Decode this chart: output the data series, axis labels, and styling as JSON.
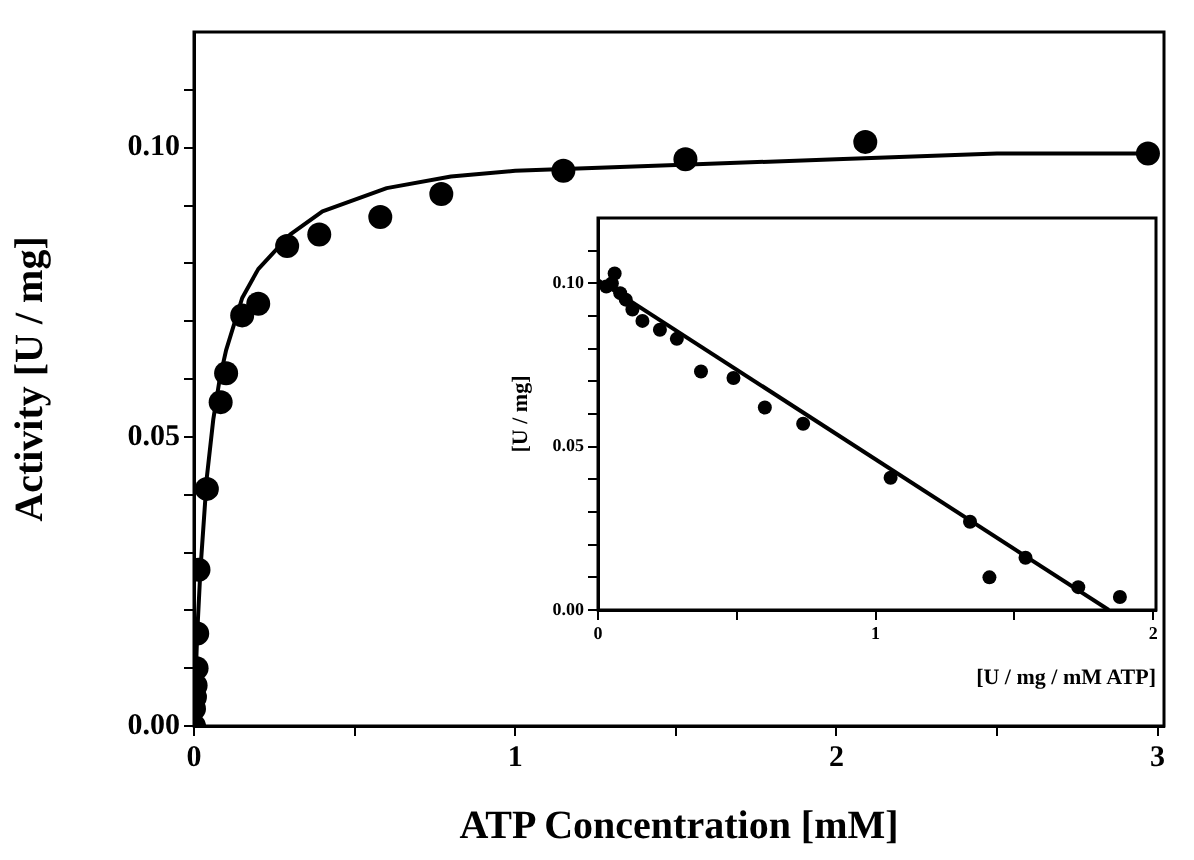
{
  "chart_data": [
    {
      "type": "scatter",
      "xlabel": "ATP Concentration [mM]",
      "ylabel": "Activity [U / mg]",
      "xlim": [
        0,
        3.02
      ],
      "ylim": [
        0,
        0.12
      ],
      "marker": "circle",
      "xticks": [
        0,
        {
          "value": 0.5,
          "label": null
        },
        1,
        {
          "value": 1.5,
          "label": null
        },
        2,
        {
          "value": 2.5,
          "label": null
        },
        3
      ],
      "yticks": [
        {
          "value": 0,
          "label": "0.00"
        },
        {
          "value": 0.01,
          "label": null
        },
        {
          "value": 0.02,
          "label": null
        },
        {
          "value": 0.03,
          "label": null
        },
        {
          "value": 0.04,
          "label": null
        },
        {
          "value": 0.05,
          "label": "0.05"
        },
        {
          "value": 0.06,
          "label": null
        },
        {
          "value": 0.07,
          "label": null
        },
        {
          "value": 0.08,
          "label": null
        },
        {
          "value": 0.09,
          "label": null
        },
        {
          "value": 0.1,
          "label": "0.10"
        },
        {
          "value": 0.11,
          "label": null
        }
      ],
      "series": [
        {
          "color": "#000000",
          "x": [
            0,
            0,
            0.003,
            0.005,
            0.008,
            0.01,
            0.014,
            0.04,
            0.083,
            0.1,
            0.15,
            0.2,
            0.29,
            0.39,
            0.58,
            0.77,
            1.15,
            1.53,
            2.09,
            2.97
          ],
          "values": [
            0,
            0.003,
            0.005,
            0.007,
            0.01,
            0.016,
            0.027,
            0.041,
            0.056,
            0.061,
            0.071,
            0.073,
            0.083,
            0.085,
            0.088,
            0.092,
            0.096,
            0.098,
            0.101,
            0.099
          ]
        },
        {
          "type": "line",
          "marker": "none",
          "color": "#000000",
          "x": [
            0,
            0.01,
            0.02,
            0.04,
            0.06,
            0.08,
            0.1,
            0.15,
            0.2,
            0.3,
            0.4,
            0.6,
            0.8,
            1,
            1.5,
            2,
            2.5,
            3
          ],
          "values": [
            0,
            0.016,
            0.027,
            0.043,
            0.053,
            0.06,
            0.065,
            0.074,
            0.079,
            0.085,
            0.089,
            0.093,
            0.095,
            0.096,
            0.097,
            0.098,
            0.099,
            0.099
          ]
        }
      ]
    },
    {
      "type": "scatter",
      "xlabel": "[U / mg / mM ATP]",
      "ylabel": "[U / mg]",
      "xlim": [
        0,
        2.01
      ],
      "ylim": [
        0,
        0.12
      ],
      "marker": "circle",
      "xticks": [
        0,
        {
          "value": 0.5,
          "label": null
        },
        1,
        {
          "value": 1.5,
          "label": null
        },
        2
      ],
      "yticks": [
        {
          "value": 0,
          "label": "0.00"
        },
        {
          "value": 0.01,
          "label": null
        },
        {
          "value": 0.02,
          "label": null
        },
        {
          "value": 0.03,
          "label": null
        },
        {
          "value": 0.04,
          "label": null
        },
        {
          "value": 0.05,
          "label": "0.05"
        },
        {
          "value": 0.06,
          "label": null
        },
        {
          "value": 0.07,
          "label": null
        },
        {
          "value": 0.08,
          "label": null
        },
        {
          "value": 0.09,
          "label": null
        },
        {
          "value": 0.1,
          "label": "0.10"
        },
        {
          "value": 0.11,
          "label": null
        }
      ],
      "series": [
        {
          "color": "#000000",
          "x": [
            0.03,
            0.05,
            0.06,
            0.08,
            0.1,
            0.124,
            0.16,
            0.223,
            0.284,
            0.371,
            0.488,
            0.601,
            0.739,
            1.054,
            1.34,
            1.41,
            1.54,
            1.73,
            1.88
          ],
          "values": [
            0.099,
            0.1,
            0.103,
            0.097,
            0.095,
            0.092,
            0.0885,
            0.0858,
            0.083,
            0.073,
            0.071,
            0.062,
            0.057,
            0.0405,
            0.027,
            0.01,
            0.016,
            0.007,
            0.004
          ]
        },
        {
          "type": "line",
          "marker": "none",
          "color": "#000000",
          "x": [
            0,
            1.84
          ],
          "values": [
            0.101,
            0
          ]
        }
      ]
    }
  ]
}
